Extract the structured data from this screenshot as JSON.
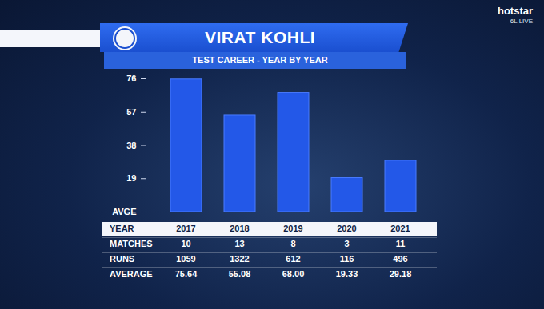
{
  "chart_data": {
    "type": "bar",
    "title": "VIRAT KOHLI",
    "subtitle": "TEST CAREER - YEAR BY YEAR",
    "categories": [
      "2017",
      "2018",
      "2019",
      "2020",
      "2021"
    ],
    "values": [
      75.64,
      55.08,
      68.0,
      19.33,
      29.18
    ],
    "color": "#2358e8",
    "ylim": [
      0,
      76
    ],
    "yticks": [
      {
        "value": 0,
        "label": "AVGE"
      },
      19,
      38,
      57,
      76
    ],
    "table": {
      "header": "YEAR",
      "rows": [
        {
          "label": "MATCHES",
          "values": [
            10,
            13,
            8,
            3,
            11
          ]
        },
        {
          "label": "RUNS",
          "values": [
            1059,
            1322,
            612,
            116,
            496
          ]
        },
        {
          "label": "AVERAGE",
          "values": [
            75.64,
            55.08,
            68.0,
            19.33,
            29.18
          ],
          "value_labels": [
            "75.64",
            "55.08",
            "68.00",
            "19.33",
            "29.18"
          ]
        }
      ]
    },
    "broadcaster": "hotstar",
    "live_label": "6L LIVE"
  }
}
